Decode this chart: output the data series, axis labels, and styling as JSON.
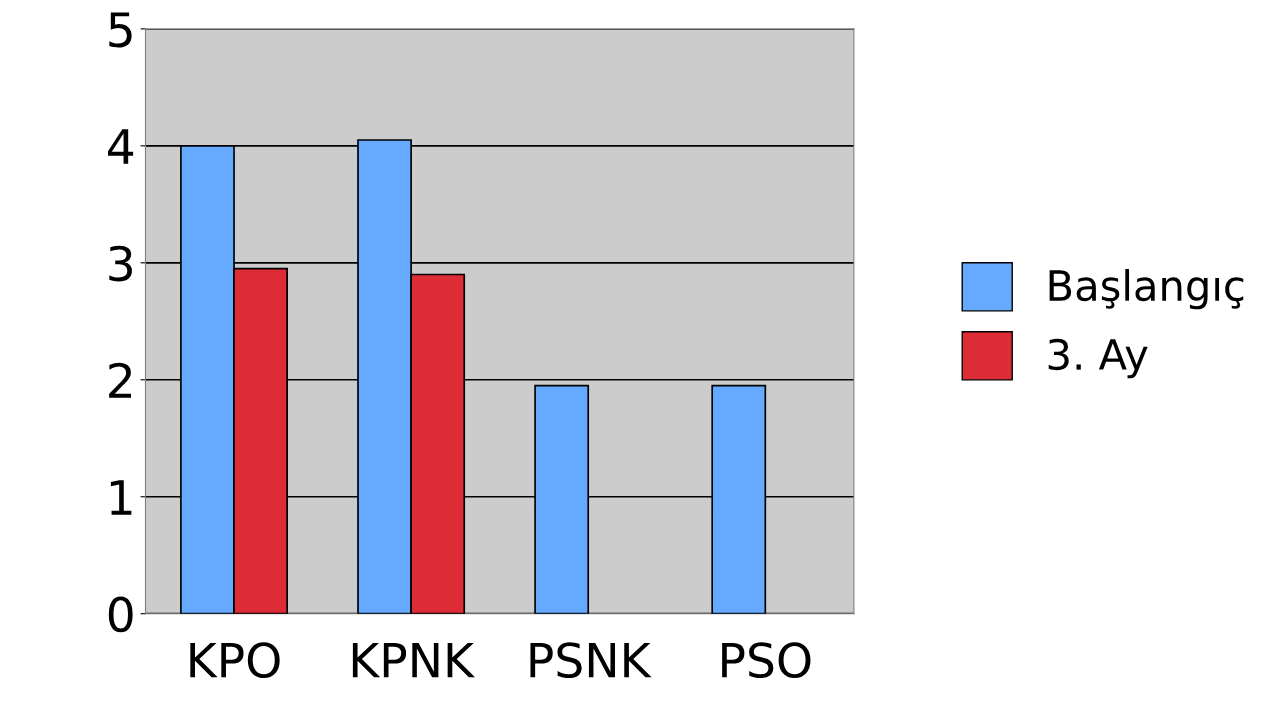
{
  "chart_data": {
    "type": "bar",
    "categories": [
      "KPO",
      "KPNK",
      "PSNK",
      "PSO"
    ],
    "series": [
      {
        "name": "Başlangıç",
        "color": "#66aaff",
        "values": [
          4.0,
          4.05,
          1.95,
          1.95
        ]
      },
      {
        "name": "3. Ay",
        "color": "#dd2c35",
        "values": [
          2.95,
          2.9,
          null,
          null
        ]
      }
    ],
    "ylim": [
      0,
      5
    ],
    "yticks": [
      0,
      1,
      2,
      3,
      4,
      5
    ],
    "grid": "y",
    "legend": "right"
  }
}
